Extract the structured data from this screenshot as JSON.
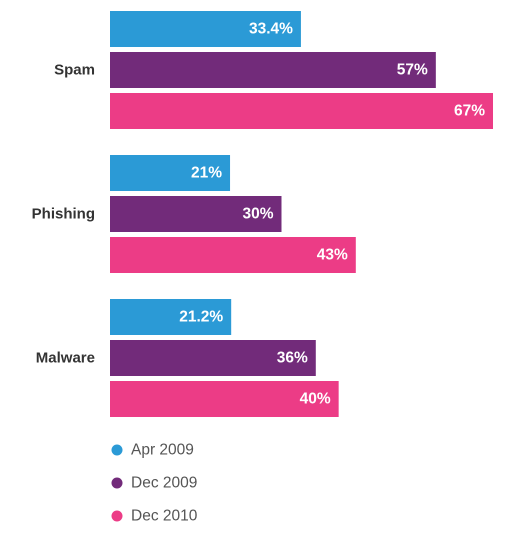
{
  "chart_data": {
    "type": "bar",
    "orientation": "horizontal",
    "categories": [
      "Spam",
      "Phishing",
      "Malware"
    ],
    "series": [
      {
        "name": "Apr 2009",
        "color": "#2b9ad6",
        "values": [
          33.4,
          21,
          21.2
        ],
        "labels": [
          "33.4%",
          "21%",
          "21.2%"
        ]
      },
      {
        "name": "Dec 2009",
        "color": "#722b7a",
        "values": [
          57,
          30,
          36
        ],
        "labels": [
          "57%",
          "30%",
          "36%"
        ]
      },
      {
        "name": "Dec 2010",
        "color": "#ec3c86",
        "values": [
          67,
          43,
          40
        ],
        "labels": [
          "67%",
          "43%",
          "40%"
        ]
      }
    ],
    "title": "",
    "xlabel": "",
    "ylabel": "",
    "xlim": [
      0,
      67
    ],
    "grid": false,
    "legend_position": "bottom-left"
  }
}
